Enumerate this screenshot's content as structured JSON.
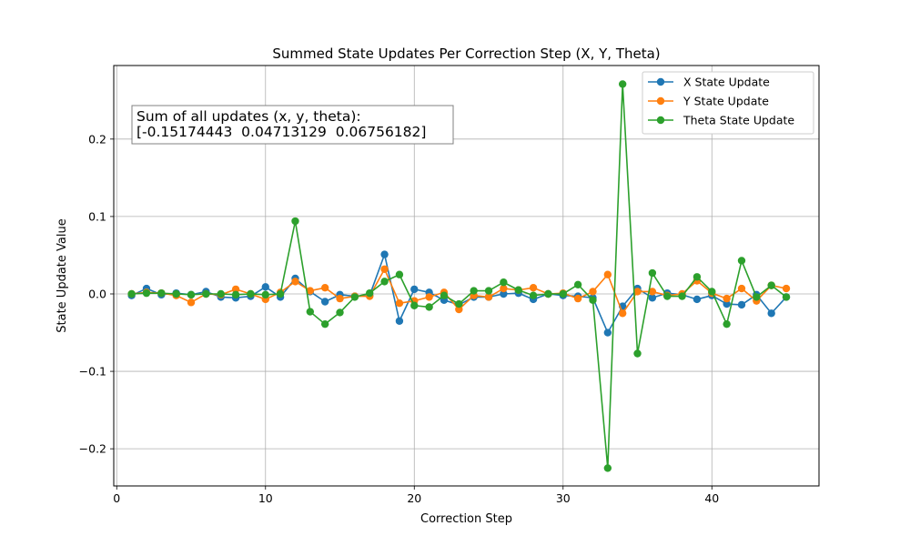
{
  "chart_data": {
    "type": "line",
    "title": "Summed State Updates Per Correction Step (X, Y, Theta)",
    "xlabel": "Correction Step",
    "ylabel": "State Update Value",
    "xlim": [
      -0.2,
      47.2
    ],
    "ylim": [
      -0.248,
      0.295
    ],
    "xticks": [
      0,
      10,
      20,
      30,
      40
    ],
    "xtick_labels": [
      "0",
      "10",
      "20",
      "30",
      "40"
    ],
    "yticks": [
      -0.2,
      -0.1,
      0.0,
      0.1,
      0.2
    ],
    "ytick_labels": [
      "−0.2",
      "−0.1",
      "0.0",
      "0.1",
      "0.2"
    ],
    "grid": true,
    "legend_position": "top-right",
    "annotation_lines": [
      "Sum of all updates (x, y, theta):",
      "[-0.15174443  0.04713129  0.06756182]"
    ],
    "x": [
      1,
      2,
      3,
      4,
      5,
      6,
      7,
      8,
      9,
      10,
      11,
      12,
      13,
      14,
      15,
      16,
      17,
      18,
      19,
      20,
      21,
      22,
      23,
      24,
      25,
      26,
      27,
      28,
      29,
      30,
      31,
      32,
      33,
      34,
      35,
      36,
      37,
      38,
      39,
      40,
      41,
      42,
      43,
      44,
      45
    ],
    "series": [
      {
        "name": "X State Update",
        "color": "#1f77b4",
        "values": [
          -0.002,
          0.007,
          -0.001,
          0.001,
          -0.001,
          0.003,
          -0.004,
          -0.005,
          -0.003,
          0.009,
          -0.004,
          0.02,
          0.003,
          -0.01,
          -0.001,
          -0.003,
          -0.002,
          0.051,
          -0.035,
          0.006,
          0.002,
          -0.008,
          -0.014,
          -0.004,
          -0.004,
          0.0,
          0.001,
          -0.007,
          0.0,
          -0.002,
          -0.003,
          -0.005,
          -0.05,
          -0.016,
          0.007,
          -0.005,
          0.001,
          -0.001,
          -0.007,
          -0.002,
          -0.013,
          -0.014,
          -0.001,
          -0.025,
          -0.004
        ]
      },
      {
        "name": "Y State Update",
        "color": "#ff7f0e",
        "values": [
          0.0,
          0.002,
          0.001,
          -0.002,
          -0.011,
          0.0,
          -0.001,
          0.006,
          0.0,
          -0.007,
          0.002,
          0.016,
          0.004,
          0.008,
          -0.006,
          -0.003,
          -0.003,
          0.032,
          -0.012,
          -0.009,
          -0.004,
          0.002,
          -0.02,
          -0.002,
          -0.004,
          0.007,
          0.005,
          0.008,
          0.0,
          0.001,
          -0.006,
          0.003,
          0.025,
          -0.025,
          0.003,
          0.003,
          -0.002,
          0.0,
          0.017,
          0.001,
          -0.006,
          0.007,
          -0.009,
          0.011,
          0.007
        ]
      },
      {
        "name": "Theta State Update",
        "color": "#2ca02c",
        "values": [
          0.0,
          0.001,
          0.001,
          0.0,
          -0.001,
          0.0,
          0.0,
          -0.001,
          0.0,
          -0.001,
          0.0,
          0.094,
          -0.023,
          -0.039,
          -0.024,
          -0.004,
          0.001,
          0.016,
          0.025,
          -0.015,
          -0.017,
          -0.002,
          -0.013,
          0.004,
          0.004,
          0.015,
          0.005,
          -0.002,
          0.0,
          0.0,
          0.012,
          -0.008,
          -0.225,
          0.271,
          -0.077,
          0.027,
          -0.003,
          -0.003,
          0.022,
          0.003,
          -0.039,
          0.043,
          -0.004,
          0.011,
          -0.004
        ]
      }
    ]
  }
}
